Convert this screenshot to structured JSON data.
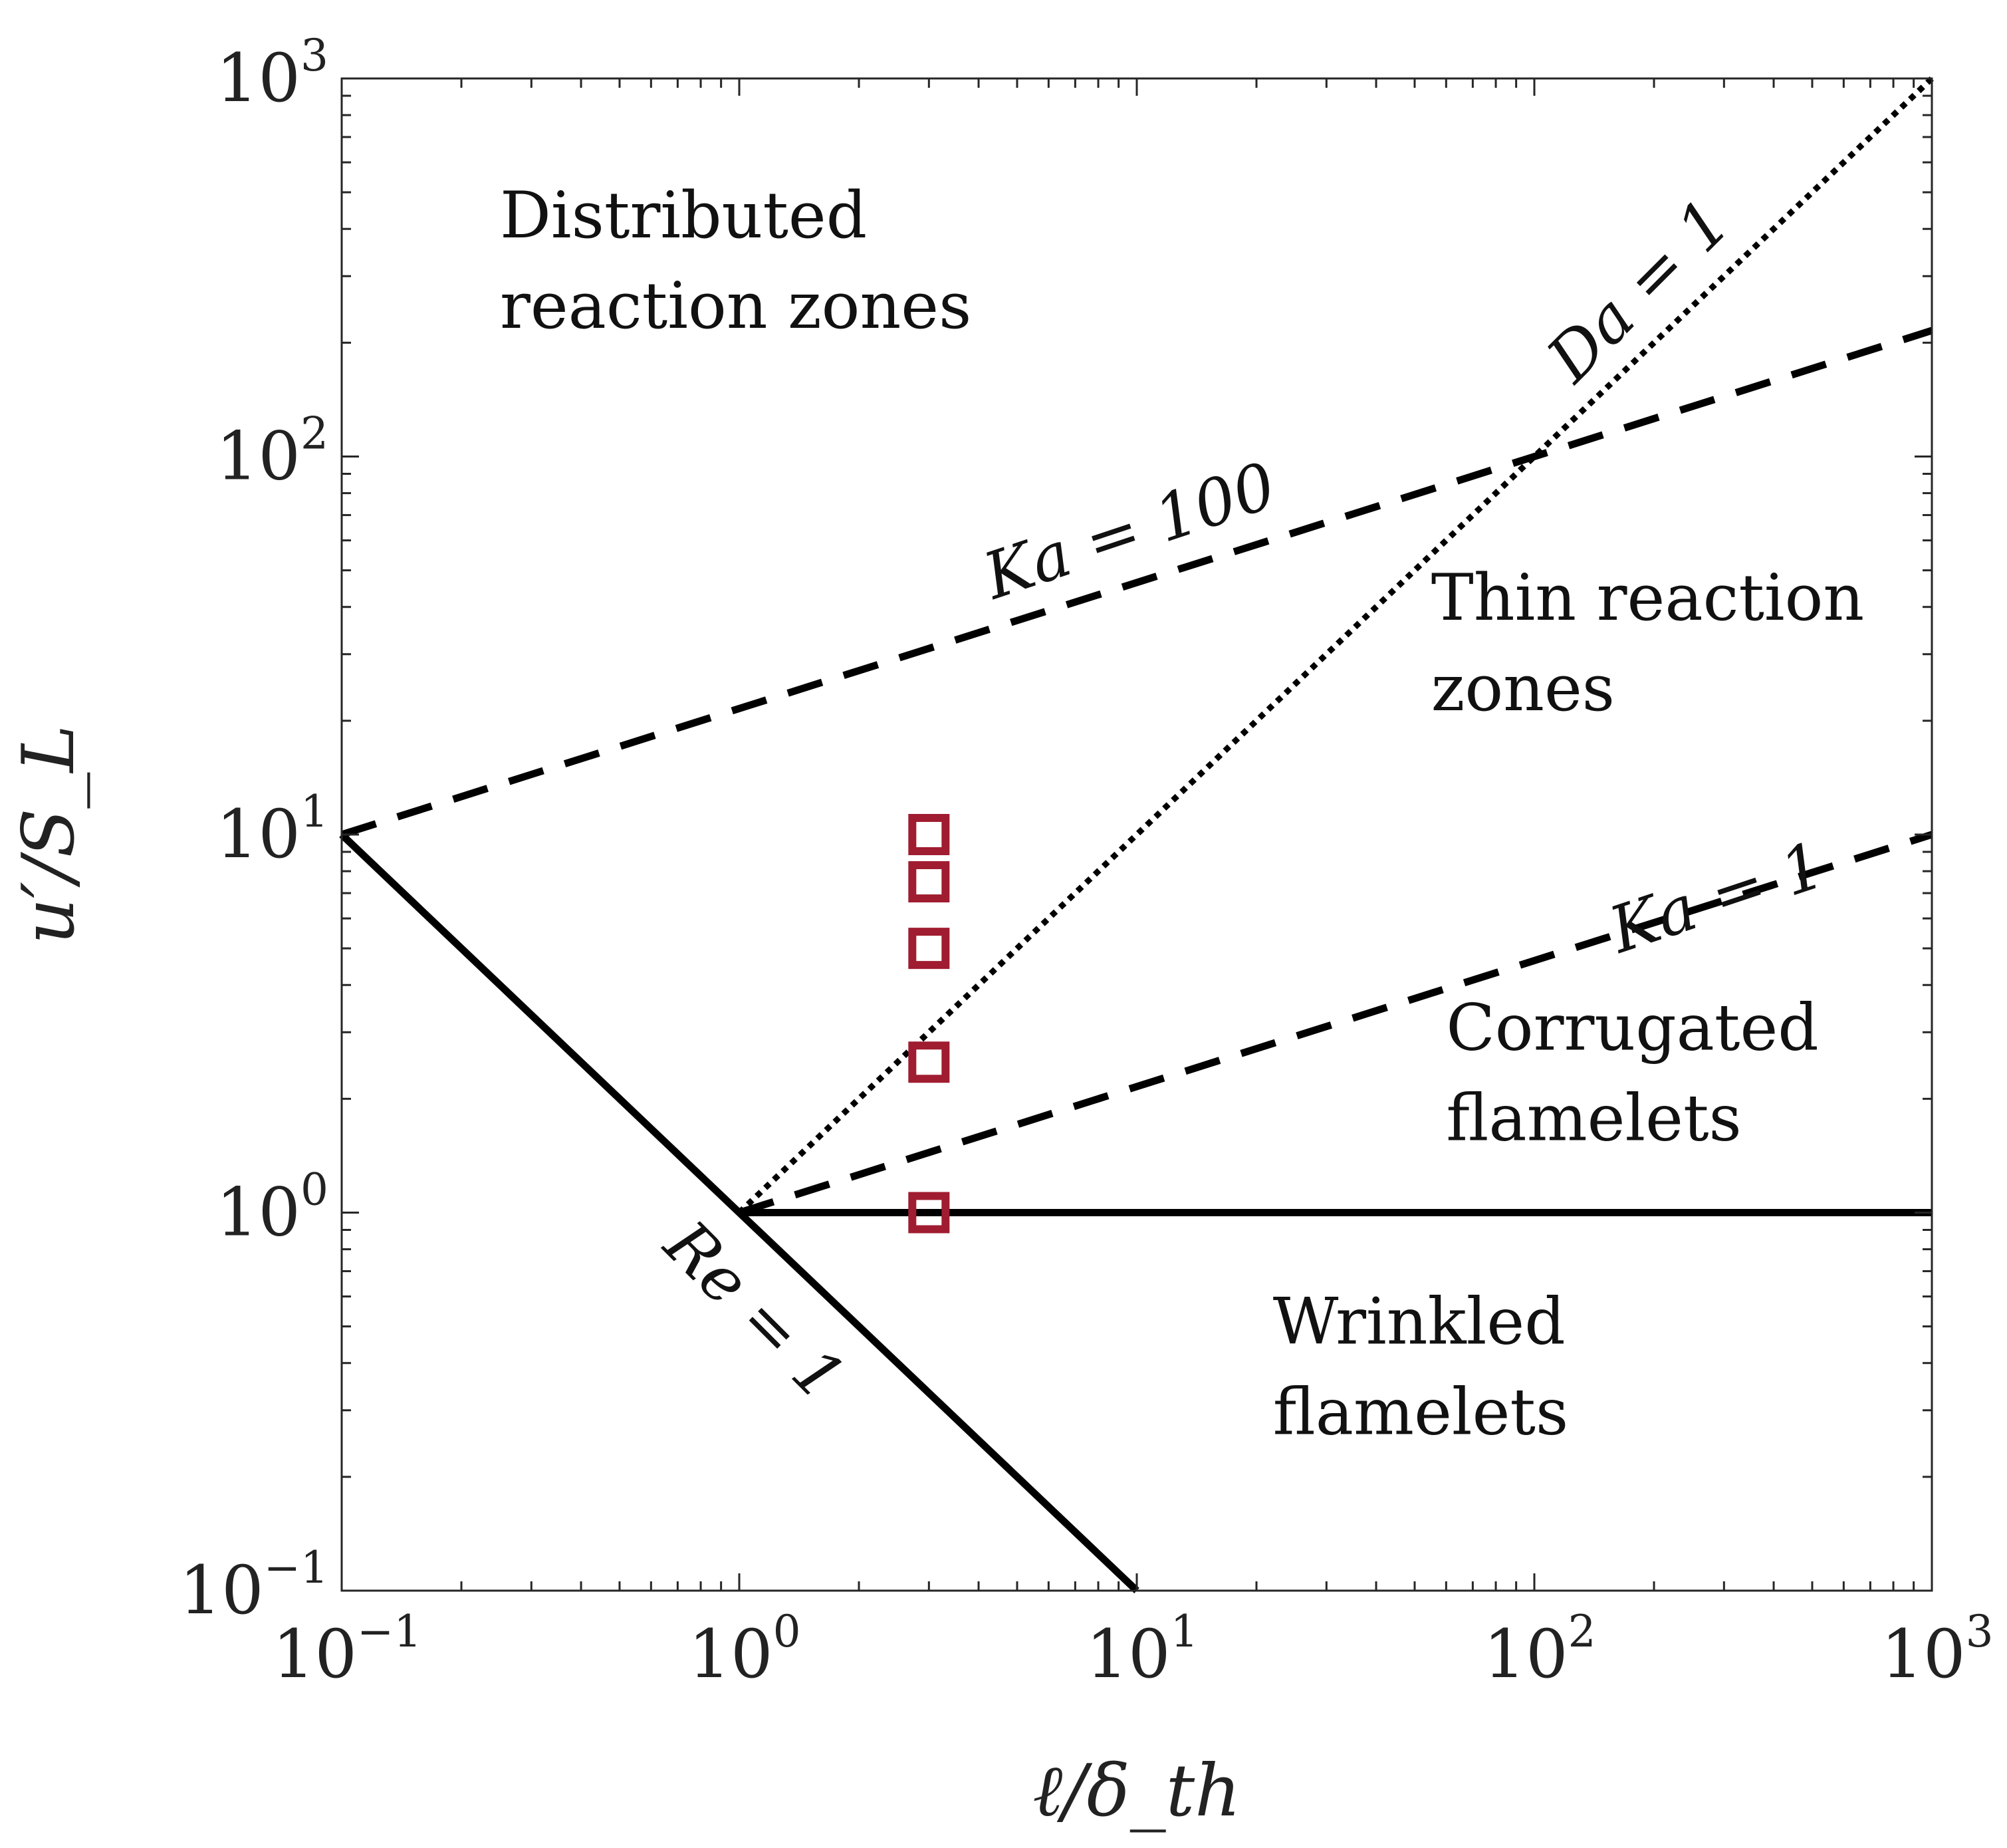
{
  "chart_data": {
    "type": "line",
    "xscale": "log",
    "yscale": "log",
    "xlim": [
      0.1,
      1000
    ],
    "ylim": [
      0.1,
      1000
    ],
    "xlabel": "ℓ/δ_th",
    "ylabel": "u′/S_L",
    "grid": false,
    "xticks": [
      {
        "value": 0.1,
        "base": "10",
        "exp": "−1"
      },
      {
        "value": 1,
        "base": "10",
        "exp": "0"
      },
      {
        "value": 10,
        "base": "10",
        "exp": "1"
      },
      {
        "value": 100,
        "base": "10",
        "exp": "2"
      },
      {
        "value": 1000,
        "base": "10",
        "exp": "3"
      }
    ],
    "yticks": [
      {
        "value": 0.1,
        "base": "10",
        "exp": "−1"
      },
      {
        "value": 1,
        "base": "10",
        "exp": "0"
      },
      {
        "value": 10,
        "base": "10",
        "exp": "1"
      },
      {
        "value": 100,
        "base": "10",
        "exp": "2"
      },
      {
        "value": 1000,
        "base": "10",
        "exp": "3"
      }
    ],
    "lines": [
      {
        "label": "Re = 1",
        "style": "solid",
        "points": [
          [
            0.1,
            10
          ],
          [
            10,
            0.1
          ]
        ],
        "label_pos": [
          1.0,
          0.5
        ],
        "label_angle": 45
      },
      {
        "label": "",
        "style": "solid",
        "points": [
          [
            1,
            1
          ],
          [
            1000,
            1
          ]
        ]
      },
      {
        "label": "Da = 1",
        "style": "dotted",
        "points": [
          [
            1,
            1
          ],
          [
            1000,
            1000
          ]
        ],
        "label_pos": [
          200,
          250
        ],
        "label_angle": -45
      },
      {
        "label": "Ka = 100",
        "style": "dashed",
        "points": [
          [
            0.1,
            10
          ],
          [
            1000,
            215.4
          ]
        ],
        "label_pos": [
          10,
          56
        ],
        "label_angle": -18.4
      },
      {
        "label": "Ka = 1",
        "style": "dashed",
        "points": [
          [
            1,
            1
          ],
          [
            1000,
            10
          ]
        ],
        "label_pos": [
          300,
          6
        ],
        "label_angle": -18.4
      }
    ],
    "markers": {
      "shape": "square",
      "color": "#a01c30",
      "points": [
        [
          3,
          10
        ],
        [
          3,
          7.5
        ],
        [
          3,
          5
        ],
        [
          3,
          2.5
        ],
        [
          3,
          1
        ]
      ]
    },
    "regions": [
      {
        "lines": [
          "Distributed",
          "reaction zones"
        ],
        "pos": [
          0.25,
          380
        ]
      },
      {
        "lines": [
          "Thin reaction",
          "zones"
        ],
        "pos": [
          55,
          37
        ]
      },
      {
        "lines": [
          "Corrugated",
          "flamelets"
        ],
        "pos": [
          60,
          2.7
        ]
      },
      {
        "lines": [
          "Wrinkled",
          "flamelets"
        ],
        "pos": [
          22,
          0.45
        ]
      }
    ]
  }
}
